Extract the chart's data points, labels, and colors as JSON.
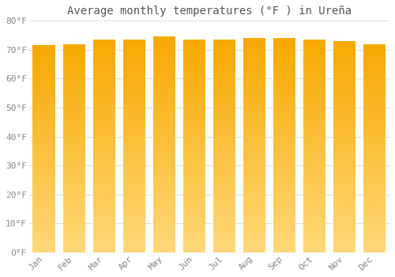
{
  "title": "Average monthly temperatures (°F ) in Ureña",
  "categories": [
    "Jan",
    "Feb",
    "Mar",
    "Apr",
    "May",
    "Jun",
    "Jul",
    "Aug",
    "Sep",
    "Oct",
    "Nov",
    "Dec"
  ],
  "values": [
    71.5,
    72.0,
    73.5,
    73.5,
    74.5,
    73.5,
    73.5,
    74.0,
    74.0,
    73.5,
    73.0,
    72.0
  ],
  "bar_color_top": "#F5A800",
  "bar_color_bottom": "#FFD878",
  "ylim": [
    0,
    80
  ],
  "yticks": [
    0,
    10,
    20,
    30,
    40,
    50,
    60,
    70,
    80
  ],
  "ytick_labels": [
    "0°F",
    "10°F",
    "20°F",
    "30°F",
    "40°F",
    "50°F",
    "60°F",
    "70°F",
    "80°F"
  ],
  "background_color": "#FFFFFF",
  "grid_color": "#E0E0E0",
  "title_fontsize": 10,
  "tick_fontsize": 8,
  "font_family": "monospace",
  "bar_width": 0.75
}
